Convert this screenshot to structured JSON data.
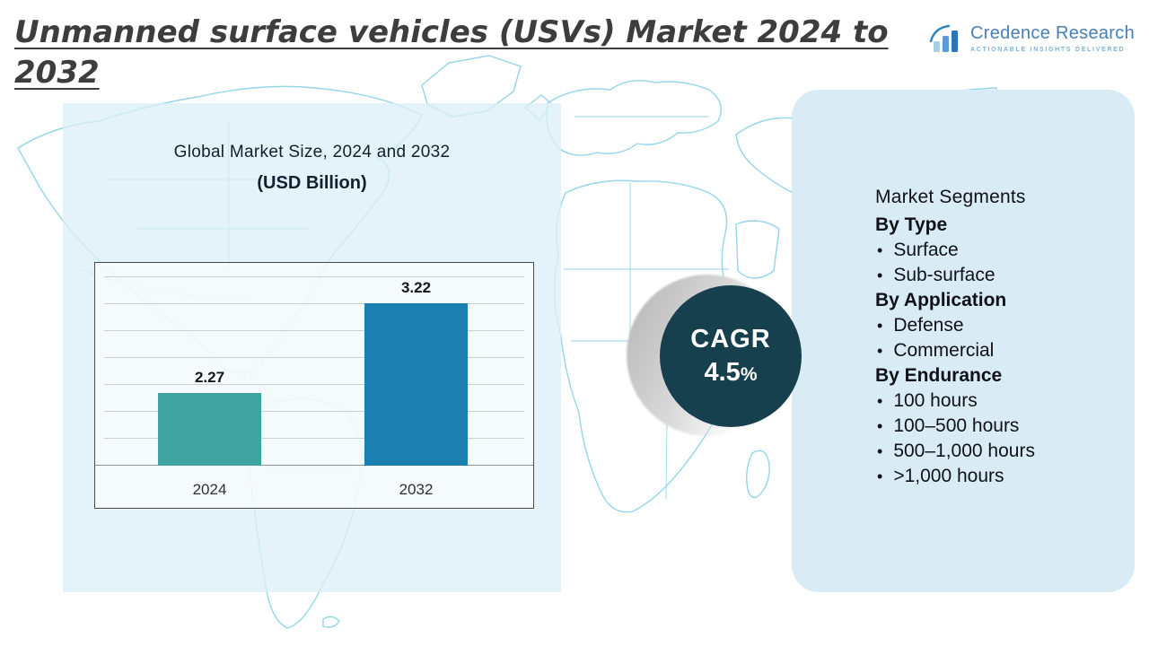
{
  "header": {
    "title_line1": "Unmanned surface vehicles (USVs) Market 2024 to",
    "title_line2": "2032"
  },
  "logo": {
    "name": "Credence Research",
    "tagline": "Actionable Insights Delivered"
  },
  "chart": {
    "title_line1": "Global Market Size, 2024 and 2032",
    "title_line2": "(USD Billion)"
  },
  "chart_data": {
    "type": "bar",
    "title": "Global Market Size, 2024 and 2032 (USD Billion)",
    "categories": [
      "2024",
      "2032"
    ],
    "values": [
      2.27,
      3.22
    ],
    "bar_colors": [
      "#3fa3a0",
      "#1c7fb2"
    ],
    "xlabel": "",
    "ylabel": "",
    "ylim": [
      1.5,
      3.5
    ],
    "grid": true,
    "legend": "none"
  },
  "cagr": {
    "label": "CAGR",
    "value": "4.5",
    "percent_sign": "%"
  },
  "segments": {
    "title": "Market Segments",
    "groups": [
      {
        "heading": "By Type",
        "items": [
          "Surface",
          "Sub-surface"
        ]
      },
      {
        "heading": "By Application",
        "items": [
          "Defense",
          "Commercial"
        ]
      },
      {
        "heading": "By Endurance",
        "items": [
          "100 hours",
          "100–500 hours",
          "500–1,000 hours",
          ">1,000 hours"
        ]
      }
    ]
  },
  "colors": {
    "panel_bg": "#d9ecf5",
    "bar_2024": "#3fa3a0",
    "bar_2032": "#1c7fb2",
    "cagr_circle": "#17404f",
    "map_stroke": "#93d6e8",
    "title_text": "#3d3d3d"
  }
}
